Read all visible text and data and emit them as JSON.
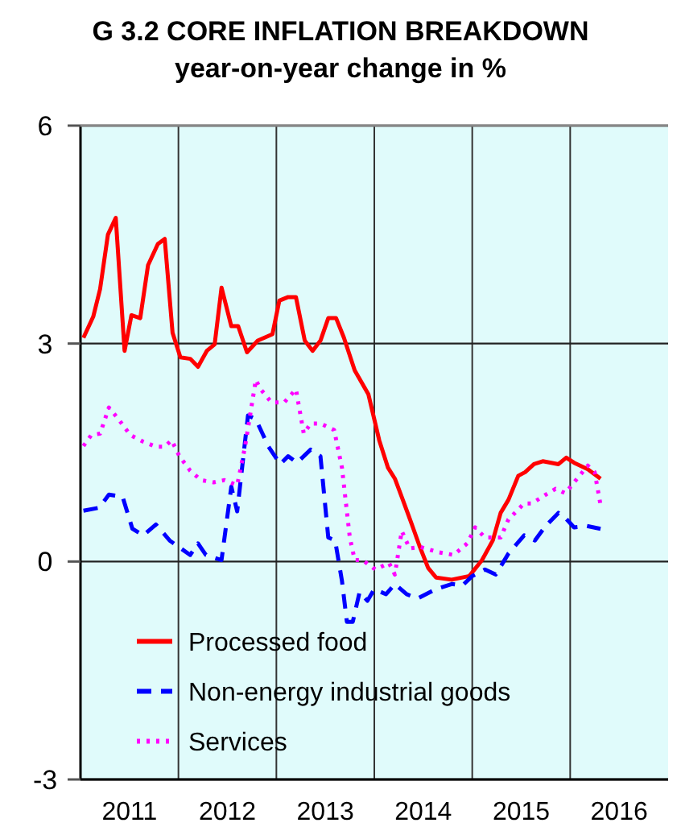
{
  "chart_data": {
    "type": "line",
    "title": "G 3.2 CORE INFLATION BREAKDOWN",
    "subtitle": "year-on-year change in %",
    "xlim": [
      2011,
      2017
    ],
    "xticks": [
      {
        "value": 2012,
        "label": null
      },
      {
        "value": 2013,
        "label": null
      },
      {
        "value": 2014,
        "label": null
      },
      {
        "value": 2015,
        "label": null
      },
      {
        "value": 2016,
        "label": null
      },
      {
        "value": 2011.5,
        "label": "2011"
      },
      {
        "value": 2012.5,
        "label": "2012"
      },
      {
        "value": 2013.5,
        "label": "2013"
      },
      {
        "value": 2014.5,
        "label": "2014"
      },
      {
        "value": 2015.5,
        "label": "2015"
      },
      {
        "value": 2016.5,
        "label": "2016"
      }
    ],
    "ylim": [
      -3,
      6
    ],
    "yticks": [
      -3,
      0,
      3,
      6
    ],
    "grid": true,
    "legend": "bottom left",
    "series": [
      {
        "name": "Processed food",
        "color": "#ff0000",
        "line_style": "solid",
        "x": [
          2011.03,
          2011.13,
          2011.2,
          2011.28,
          2011.36,
          2011.45,
          2011.52,
          2011.61,
          2011.69,
          2011.79,
          2011.86,
          2011.94,
          2012.02,
          2012.12,
          2012.2,
          2012.29,
          2012.37,
          2012.44,
          2012.54,
          2012.61,
          2012.7,
          2012.81,
          2012.96,
          2013.03,
          2013.12,
          2013.2,
          2013.29,
          2013.37,
          2013.45,
          2013.53,
          2013.61,
          2013.69,
          2013.8,
          2013.94,
          2014.05,
          2014.14,
          2014.21,
          2014.28,
          2014.37,
          2014.46,
          2014.55,
          2014.63,
          2014.79,
          2014.97,
          2015.1,
          2015.21,
          2015.29,
          2015.37,
          2015.47,
          2015.54,
          2015.63,
          2015.72,
          2015.88,
          2015.96,
          2016.04,
          2016.18,
          2016.31
        ],
        "values": [
          3.08,
          3.37,
          3.75,
          4.5,
          4.73,
          2.9,
          3.39,
          3.35,
          4.08,
          4.37,
          4.44,
          3.15,
          2.81,
          2.79,
          2.68,
          2.9,
          2.99,
          3.77,
          3.24,
          3.24,
          2.88,
          3.04,
          3.13,
          3.59,
          3.64,
          3.64,
          3.04,
          2.9,
          3.04,
          3.35,
          3.35,
          3.08,
          2.63,
          2.3,
          1.67,
          1.29,
          1.14,
          0.89,
          0.56,
          0.22,
          -0.09,
          -0.22,
          -0.25,
          -0.2,
          0.02,
          0.29,
          0.67,
          0.85,
          1.18,
          1.23,
          1.34,
          1.38,
          1.34,
          1.43,
          1.36,
          1.27,
          1.14
        ]
      },
      {
        "name": "Non-energy industrial goods",
        "color": "#0000ff",
        "line_style": "dashed",
        "x": [
          2011.03,
          2011.19,
          2011.29,
          2011.43,
          2011.53,
          2011.64,
          2011.77,
          2011.91,
          2012.12,
          2012.2,
          2012.28,
          2012.44,
          2012.54,
          2012.6,
          2012.71,
          2012.79,
          2012.92,
          2013.04,
          2013.12,
          2013.21,
          2013.35,
          2013.45,
          2013.53,
          2013.6,
          2013.67,
          2013.72,
          2013.78,
          2013.85,
          2013.93,
          2014.0,
          2014.12,
          2014.21,
          2014.33,
          2014.44,
          2014.63,
          2014.79,
          2014.9,
          2015.0,
          2015.13,
          2015.24,
          2015.37,
          2015.53,
          2015.64,
          2015.75,
          2015.88,
          2015.95,
          2016.04,
          2016.17,
          2016.31
        ],
        "values": [
          0.7,
          0.74,
          0.92,
          0.89,
          0.45,
          0.36,
          0.51,
          0.29,
          0.09,
          0.25,
          0.09,
          0.02,
          1.03,
          0.69,
          2.01,
          1.96,
          1.58,
          1.34,
          1.45,
          1.36,
          1.54,
          1.45,
          0.33,
          0.29,
          -0.27,
          -0.83,
          -0.83,
          -0.42,
          -0.54,
          -0.38,
          -0.45,
          -0.31,
          -0.45,
          -0.51,
          -0.38,
          -0.31,
          -0.33,
          -0.2,
          -0.11,
          -0.18,
          0.11,
          0.36,
          0.29,
          0.49,
          0.67,
          0.6,
          0.47,
          0.49,
          0.45
        ]
      },
      {
        "name": "Services",
        "color": "#ff00ff",
        "line_style": "dotted",
        "x": [
          2011.03,
          2011.11,
          2011.2,
          2011.29,
          2011.37,
          2011.51,
          2011.64,
          2011.77,
          2011.86,
          2011.93,
          2012.01,
          2012.12,
          2012.23,
          2012.36,
          2012.47,
          2012.6,
          2012.68,
          2012.79,
          2012.84,
          2012.95,
          2013.08,
          2013.2,
          2013.28,
          2013.35,
          2013.45,
          2013.59,
          2013.67,
          2013.75,
          2013.8,
          2013.88,
          2014.01,
          2014.15,
          2014.21,
          2014.28,
          2014.36,
          2014.47,
          2014.65,
          2014.81,
          2014.95,
          2015.03,
          2015.13,
          2015.29,
          2015.37,
          2015.53,
          2015.61,
          2015.75,
          2015.85,
          2015.95,
          2016.07,
          2016.18,
          2016.25,
          2016.31
        ],
        "values": [
          1.59,
          1.74,
          1.76,
          2.12,
          1.99,
          1.74,
          1.65,
          1.58,
          1.58,
          1.67,
          1.45,
          1.25,
          1.12,
          1.09,
          1.12,
          1.05,
          1.58,
          2.5,
          2.37,
          2.19,
          2.19,
          2.37,
          1.76,
          1.9,
          1.9,
          1.81,
          1.29,
          0.33,
          0.02,
          0.02,
          -0.11,
          -0.02,
          -0.18,
          0.42,
          0.18,
          0.2,
          0.13,
          0.09,
          0.25,
          0.47,
          0.33,
          0.33,
          0.58,
          0.8,
          0.8,
          0.92,
          1.0,
          0.94,
          1.14,
          1.32,
          1.23,
          0.78
        ]
      }
    ]
  }
}
